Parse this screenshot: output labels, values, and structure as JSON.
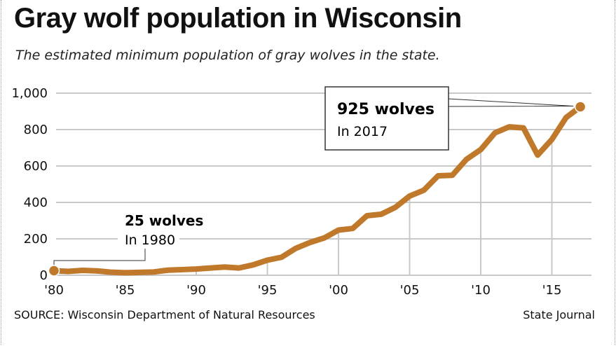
{
  "title": "Gray wolf population in Wisconsin",
  "subtitle": "The estimated minimum population of gray wolves in the state.",
  "source": "SOURCE: Wisconsin Department of Natural Resources",
  "credit": "State Journal",
  "chart_data": {
    "type": "line",
    "title": "Gray wolf population in Wisconsin",
    "xlim": [
      1980,
      2017
    ],
    "ylim": [
      0,
      1000
    ],
    "yticks": [
      0,
      200,
      400,
      600,
      800,
      1000
    ],
    "ytick_labels": [
      "0",
      "200",
      "400",
      "600",
      "800",
      "1,000"
    ],
    "xticks": [
      1980,
      1985,
      1990,
      1995,
      2000,
      2005,
      2010,
      2015
    ],
    "xtick_labels": [
      "'80",
      "'85",
      "'90",
      "'95",
      "'00",
      "'05",
      "'10",
      "'15"
    ],
    "grid": "horizontal",
    "color": "#c0782b",
    "x": [
      1980,
      1981,
      1982,
      1983,
      1984,
      1985,
      1986,
      1987,
      1988,
      1989,
      1990,
      1991,
      1992,
      1993,
      1994,
      1995,
      1996,
      1997,
      1998,
      1999,
      2000,
      2001,
      2002,
      2003,
      2004,
      2005,
      2006,
      2007,
      2008,
      2009,
      2010,
      2011,
      2012,
      2013,
      2014,
      2015,
      2016,
      2017
    ],
    "y": [
      25,
      21,
      27,
      24,
      17,
      14,
      16,
      18,
      28,
      31,
      34,
      40,
      45,
      40,
      57,
      83,
      99,
      148,
      180,
      205,
      248,
      257,
      327,
      335,
      373,
      435,
      467,
      546,
      549,
      637,
      690,
      782,
      815,
      809,
      660,
      746,
      866,
      925
    ],
    "annotations": [
      {
        "bold": "25 wolves",
        "text": "In 1980",
        "x": 1980,
        "y": 25
      },
      {
        "bold": "925 wolves",
        "text": "In 2017",
        "x": 2017,
        "y": 925
      }
    ]
  }
}
